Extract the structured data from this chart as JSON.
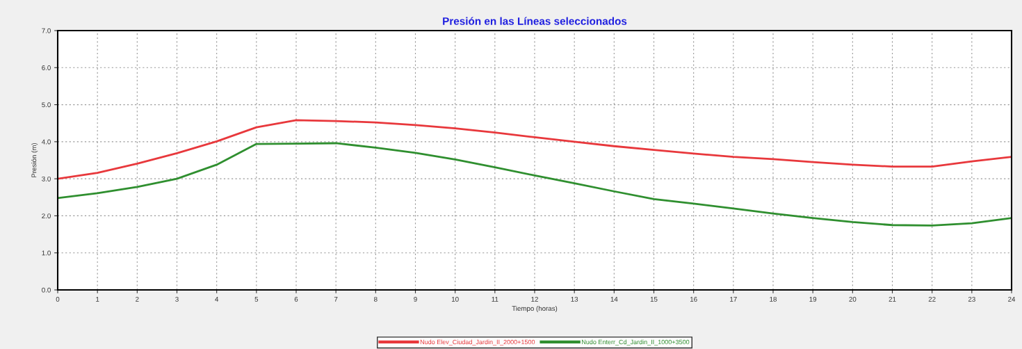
{
  "chart_data": {
    "type": "line",
    "title": "Presión en las Líneas seleccionados",
    "xlabel": "Tiempo (horas)",
    "ylabel": "Presión (m)",
    "x": [
      0,
      1,
      2,
      3,
      4,
      5,
      6,
      7,
      8,
      9,
      10,
      11,
      12,
      13,
      14,
      15,
      16,
      17,
      18,
      19,
      20,
      21,
      22,
      23,
      24
    ],
    "series": [
      {
        "name": "Nudo Elev_Ciudad_Jardin_II_2000+1500",
        "color": "#e8383c",
        "values": [
          3.0,
          3.16,
          3.41,
          3.69,
          4.01,
          4.39,
          4.58,
          4.56,
          4.52,
          4.45,
          4.36,
          4.25,
          4.12,
          4.0,
          3.88,
          3.78,
          3.68,
          3.59,
          3.53,
          3.45,
          3.38,
          3.33,
          3.33,
          3.47,
          3.59
        ]
      },
      {
        "name": "Nudo Enterr_Cd_Jardin_II_1000+3500",
        "color": "#2f8f2f",
        "values": [
          2.48,
          2.61,
          2.78,
          3.0,
          3.38,
          3.94,
          3.95,
          3.96,
          3.84,
          3.7,
          3.52,
          3.31,
          3.09,
          2.88,
          2.66,
          2.45,
          2.33,
          2.2,
          2.06,
          1.94,
          1.83,
          1.75,
          1.74,
          1.8,
          1.94
        ]
      }
    ],
    "xlim": [
      0,
      24
    ],
    "xticks": [
      0,
      1,
      2,
      3,
      4,
      5,
      6,
      7,
      8,
      9,
      10,
      11,
      12,
      13,
      14,
      15,
      16,
      17,
      18,
      19,
      20,
      21,
      22,
      23,
      24
    ],
    "ylim": [
      0,
      7
    ],
    "yticks": [
      {
        "value": 0,
        "label": "0.0"
      },
      {
        "value": 1,
        "label": "1.0"
      },
      {
        "value": 2,
        "label": "2.0"
      },
      {
        "value": 3,
        "label": "3.0"
      },
      {
        "value": 4,
        "label": "4.0"
      },
      {
        "value": 5,
        "label": "5.0"
      },
      {
        "value": 6,
        "label": "6.0"
      },
      {
        "value": 7,
        "label": "7.0"
      }
    ],
    "grid": true,
    "legend": "bottom",
    "marker": "none",
    "line_style": "solid"
  }
}
